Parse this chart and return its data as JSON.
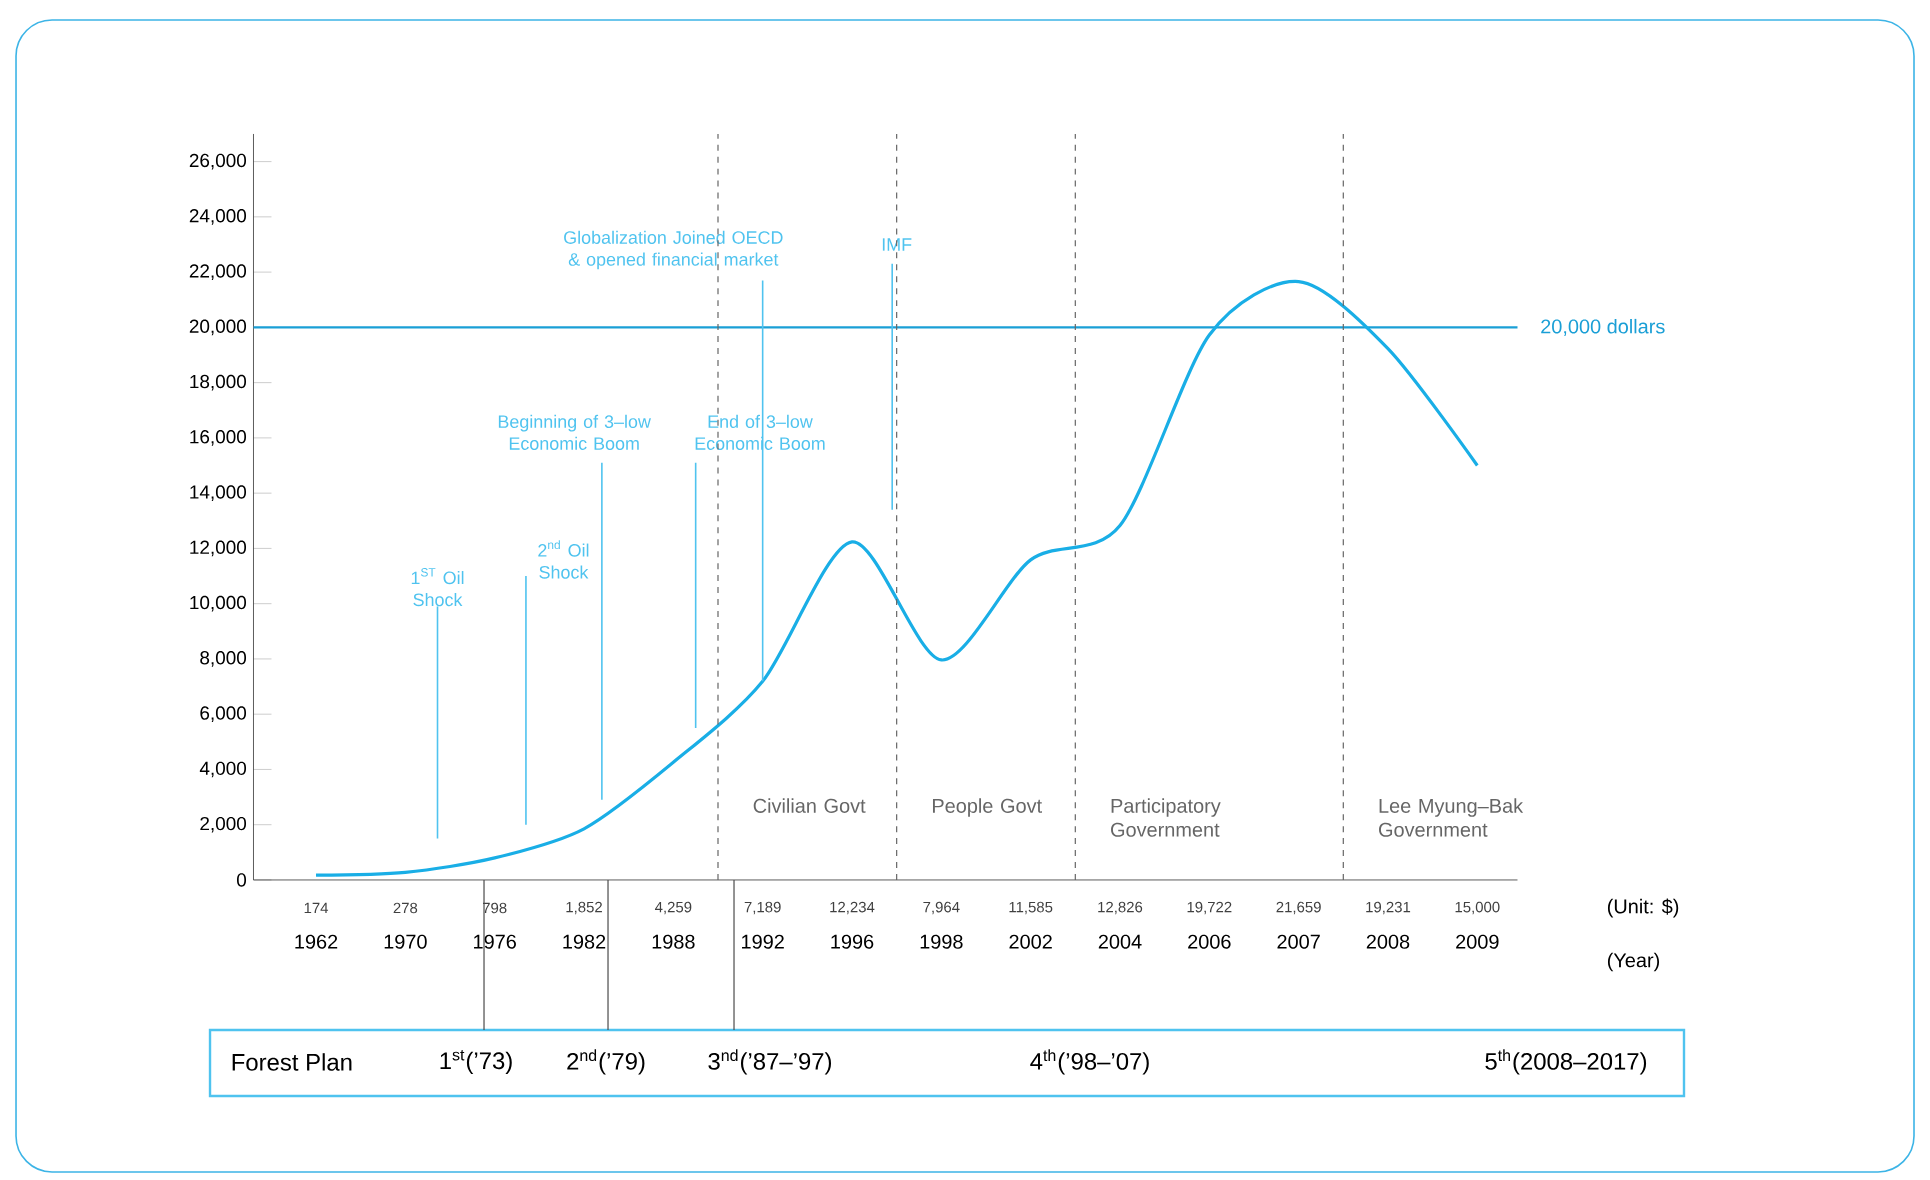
{
  "chart_data": {
    "type": "line",
    "categories": [
      "1962",
      "1970",
      "1976",
      "1982",
      "1988",
      "1992",
      "1996",
      "1998",
      "2002",
      "2004",
      "2006",
      "2007",
      "2008",
      "2009"
    ],
    "values": [
      174,
      278,
      798,
      1852,
      4259,
      7189,
      12234,
      7964,
      11585,
      12826,
      19722,
      21659,
      19231,
      15000
    ],
    "value_labels": [
      "174",
      "278",
      "798",
      "1,852",
      "4,259",
      "7,189",
      "12,234",
      "7,964",
      "11,585",
      "12,826",
      "19,722",
      "21,659",
      "19,231",
      "15,000"
    ],
    "color": "#19aee6",
    "ylim": [
      0,
      27000
    ],
    "yticks": [
      {
        "value": 0,
        "label": "0"
      },
      {
        "value": 2000,
        "label": "2,000"
      },
      {
        "value": 4000,
        "label": "4,000"
      },
      {
        "value": 6000,
        "label": "6,000"
      },
      {
        "value": 8000,
        "label": "8,000"
      },
      {
        "value": 10000,
        "label": "10,000"
      },
      {
        "value": 12000,
        "label": "12,000"
      },
      {
        "value": 14000,
        "label": "14,000"
      },
      {
        "value": 16000,
        "label": "16,000"
      },
      {
        "value": 18000,
        "label": "18,000"
      },
      {
        "value": 20000,
        "label": "20,000"
      },
      {
        "value": 22000,
        "label": "22,000"
      },
      {
        "value": 24000,
        "label": "24,000"
      },
      {
        "value": 26000,
        "label": "26,000"
      }
    ],
    "ref_lines": [
      {
        "axis": "y",
        "value": 20000,
        "label": "20,000 dollars",
        "color": "#1a9fd6",
        "line_style": "solid"
      }
    ],
    "annotations": [
      "1$^{ST}$ Oil Shock",
      "2$^{nd}$ Oil Shock",
      "Beginning of 3–low Economic Boom",
      "End of 3–low Economic Boom",
      {
        "text": "Globalization Joined OECD & opened financial market",
        "x": "1992",
        "y": 7189
      },
      "IMF",
      "(Unit: $)",
      "(Year)",
      "Forest Plan",
      "1$^{st}$(’73)",
      "2$^{nd}$(’79)",
      "3$^{nd}$(’87–’97)",
      "4$^{th}$(’98–’07)",
      "5$^{th}$(2008–2017)",
      "Civilian Govt",
      "People Govt",
      "Participatory Government",
      "Lee Myung–Bak Government"
    ]
  }
}
